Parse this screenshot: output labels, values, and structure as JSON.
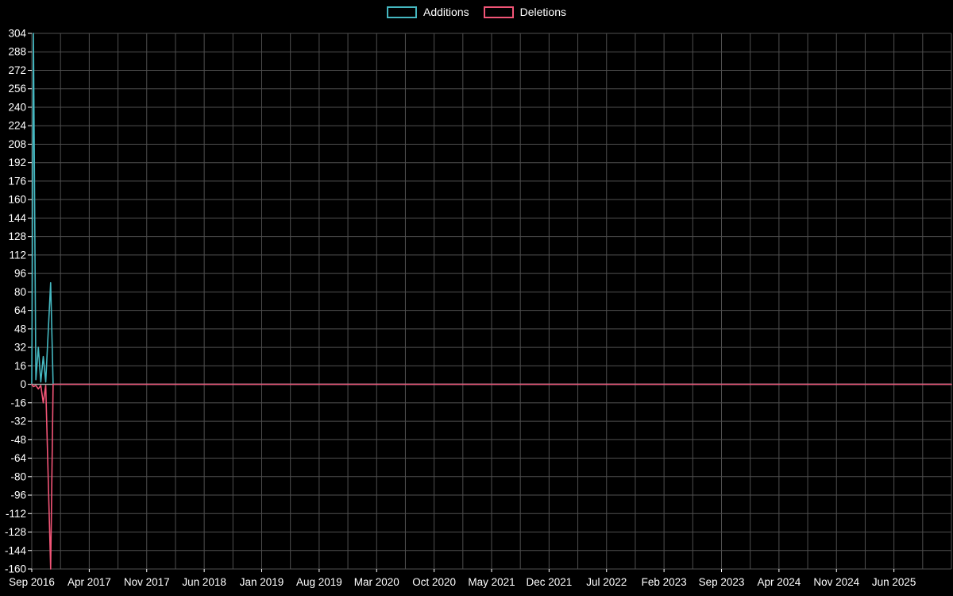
{
  "chart_data": {
    "type": "line",
    "title": "",
    "legend_position": "top-center",
    "background": "#000000",
    "text_color": "#ffffff",
    "grid_color": "#4f4f4f",
    "zero_line_color": "#aab4b0",
    "ylim": [
      -160,
      304
    ],
    "y_tick_step": 16,
    "x_max_months": 112,
    "x_tick_interval_months": 7,
    "x_minor_grid_interval_months": 3.5,
    "x_tick_labels": [
      "Sep 2016",
      "Apr 2017",
      "Nov 2017",
      "Jun 2018",
      "Jan 2019",
      "Aug 2019",
      "Mar 2020",
      "Oct 2020",
      "May 2021",
      "Dec 2021",
      "Jul 2022",
      "Feb 2023",
      "Sep 2023",
      "Apr 2024",
      "Nov 2024",
      "Jun 2025"
    ],
    "series": [
      {
        "name": "Additions",
        "color": "#45b8c1",
        "points": [
          [
            0,
            0
          ],
          [
            0.2,
            304
          ],
          [
            0.5,
            4
          ],
          [
            0.8,
            32
          ],
          [
            1.1,
            2
          ],
          [
            1.4,
            24
          ],
          [
            1.7,
            2
          ],
          [
            2.3,
            88
          ],
          [
            2.6,
            0
          ],
          [
            112,
            0
          ]
        ]
      },
      {
        "name": "Deletions",
        "color": "#f25577",
        "points": [
          [
            0,
            0
          ],
          [
            0.2,
            -2
          ],
          [
            0.5,
            -1
          ],
          [
            0.8,
            -4
          ],
          [
            1.1,
            -1
          ],
          [
            1.4,
            -16
          ],
          [
            1.7,
            -1
          ],
          [
            2.3,
            -160
          ],
          [
            2.6,
            0
          ],
          [
            112,
            0
          ]
        ]
      }
    ]
  }
}
